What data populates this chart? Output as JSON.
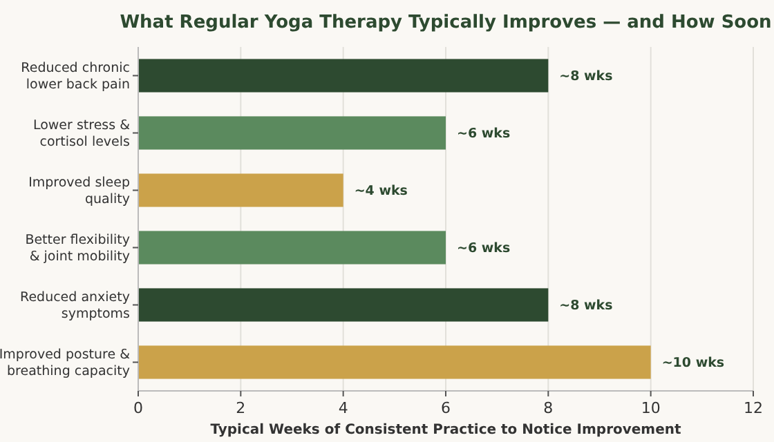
{
  "chart_data": {
    "type": "bar",
    "orientation": "horizontal",
    "title": "What Regular Yoga Therapy Typically Improves — and How Soon",
    "xlabel": "Typical Weeks of Consistent Practice to Notice Improvement",
    "categories": [
      "Reduced chronic\nlower back pain",
      "Lower stress &\ncortisol levels",
      "Improved sleep\nquality",
      "Better flexibility\n& joint mobility",
      "Reduced anxiety\nsymptoms",
      "Improved posture &\nbreathing capacity"
    ],
    "values": [
      8,
      6,
      4,
      6,
      8,
      10
    ],
    "colors": [
      "#2d4a30",
      "#5b8a5e",
      "#cba24a",
      "#5b8a5e",
      "#2d4a30",
      "#cba24a"
    ],
    "value_labels": [
      "~8 wks",
      "~6 wks",
      "~4 wks",
      "~6 wks",
      "~8 wks",
      "~10 wks"
    ],
    "xlim": [
      0,
      12
    ],
    "xticks": [
      0,
      2,
      4,
      6,
      8,
      10,
      12
    ],
    "grid": "x"
  }
}
